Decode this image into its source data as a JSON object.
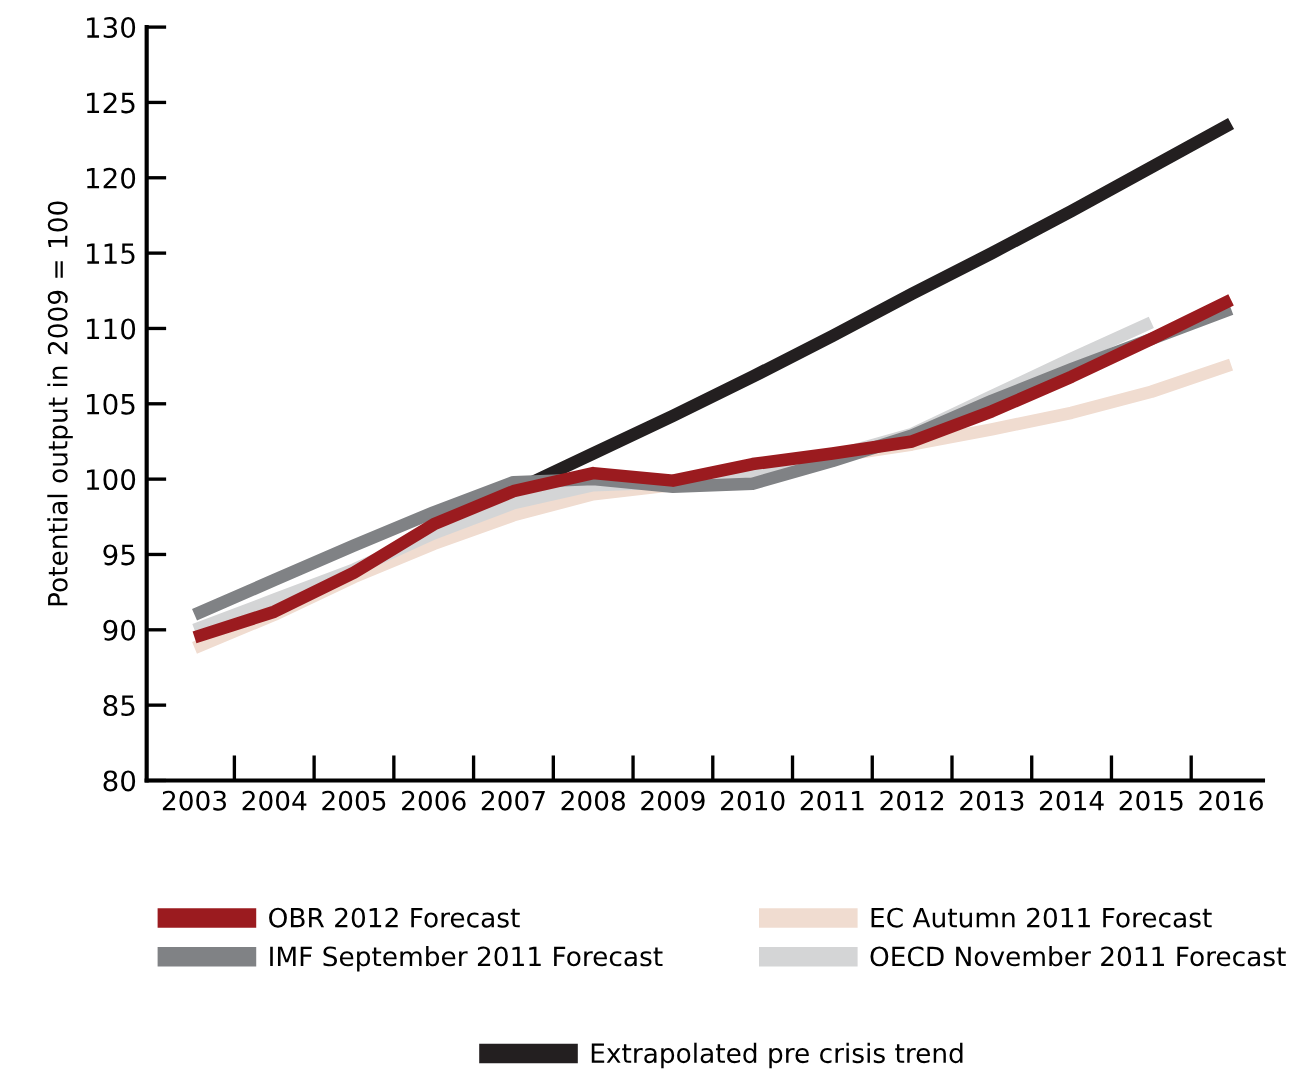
{
  "chart_data": {
    "type": "line",
    "ylabel": "Potential output in 2009 = 100",
    "categories": [
      "2003",
      "2004",
      "2005",
      "2006",
      "2007",
      "2008",
      "2009",
      "2010",
      "2011",
      "2012",
      "2013",
      "2014",
      "2015",
      "2016"
    ],
    "ylim": [
      80,
      130
    ],
    "yticks": [
      80,
      85,
      90,
      95,
      100,
      105,
      110,
      115,
      120,
      125,
      130
    ],
    "grid": false,
    "legend": "bottom",
    "marker": "none",
    "line_style": "solid",
    "series": [
      {
        "name": "Extrapolated pre crisis trend",
        "color": "#231f20",
        "values": [
          null,
          null,
          null,
          96.8,
          99.2,
          101.7,
          104.2,
          106.8,
          109.5,
          112.3,
          115.0,
          117.8,
          120.7,
          123.6
        ]
      },
      {
        "name": "EC Autumn 2011 Forecast",
        "color": "#f0dcd0",
        "values": [
          88.8,
          91.0,
          93.5,
          95.7,
          97.6,
          99.0,
          99.6,
          100.8,
          101.5,
          102.3,
          103.3,
          104.4,
          105.8,
          107.6
        ]
      },
      {
        "name": "OECD November 2011 Forecast",
        "color": "#d4d5d6",
        "values": [
          90.0,
          92.0,
          94.0,
          96.4,
          98.4,
          99.6,
          99.8,
          100.5,
          101.5,
          103.0,
          105.5,
          108.0,
          110.4,
          null
        ]
      },
      {
        "name": "IMF September 2011 Forecast",
        "color": "#808285",
        "values": [
          91.0,
          93.3,
          95.6,
          97.8,
          99.8,
          100.0,
          99.5,
          99.7,
          101.2,
          102.9,
          105.2,
          107.3,
          109.3,
          111.3
        ]
      },
      {
        "name": "OBR 2012 Forecast",
        "color": "#9b1b1f",
        "values": [
          89.5,
          91.2,
          93.8,
          97.0,
          99.2,
          100.4,
          99.9,
          101.0,
          101.7,
          102.5,
          104.5,
          106.8,
          109.3,
          111.9
        ]
      }
    ]
  }
}
